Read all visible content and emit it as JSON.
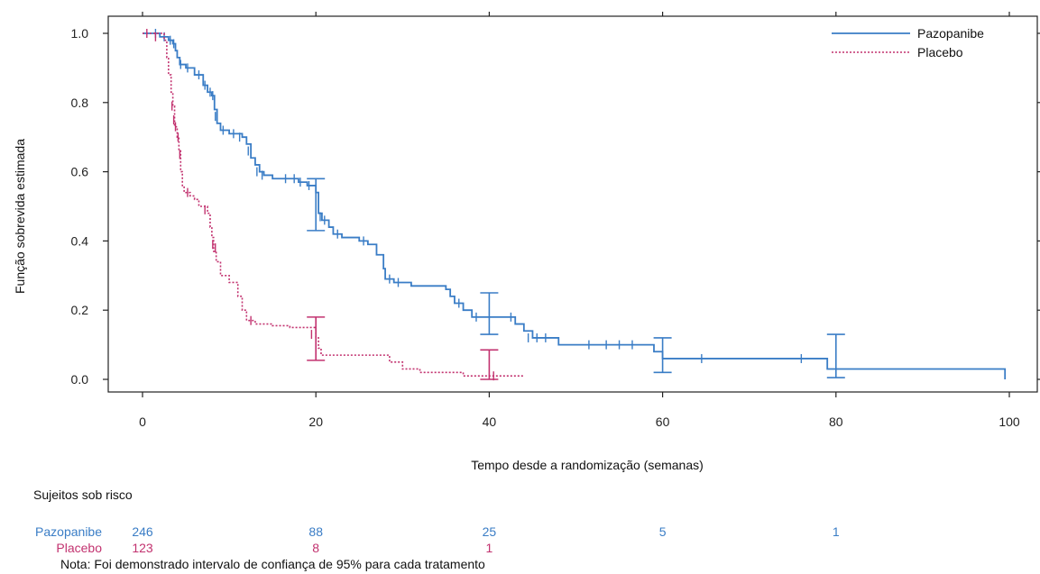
{
  "chart_data": {
    "type": "line",
    "title": "",
    "xlabel": "Tempo desde a randomização (semanas)",
    "ylabel": "Função sobrevida estimada",
    "xlim": [
      0,
      100
    ],
    "ylim": [
      0,
      1.0
    ],
    "x_ticks": [
      "0",
      "20",
      "40",
      "60",
      "80",
      "100"
    ],
    "y_ticks": [
      "0.0",
      "0.2",
      "0.4",
      "0.6",
      "0.8",
      "1.0"
    ],
    "legend": {
      "placement": "top-right",
      "entries": [
        "Pazopanibe",
        "Placebo"
      ]
    },
    "series": [
      {
        "name": "Pazopanibe",
        "color": "#3a7dc6",
        "line_style": "solid",
        "steps": [
          [
            0,
            1.0
          ],
          [
            2,
            0.99
          ],
          [
            3,
            0.98
          ],
          [
            3.5,
            0.97
          ],
          [
            3.8,
            0.95
          ],
          [
            4,
            0.93
          ],
          [
            4.3,
            0.91
          ],
          [
            5,
            0.9
          ],
          [
            6,
            0.88
          ],
          [
            7,
            0.85
          ],
          [
            7.5,
            0.83
          ],
          [
            8,
            0.82
          ],
          [
            8.3,
            0.78
          ],
          [
            8.6,
            0.74
          ],
          [
            9,
            0.72
          ],
          [
            10,
            0.71
          ],
          [
            11.5,
            0.7
          ],
          [
            12,
            0.68
          ],
          [
            12.5,
            0.64
          ],
          [
            13,
            0.62
          ],
          [
            13.5,
            0.6
          ],
          [
            14,
            0.59
          ],
          [
            15,
            0.58
          ],
          [
            17,
            0.58
          ],
          [
            18,
            0.57
          ],
          [
            19,
            0.56
          ],
          [
            20,
            0.54
          ],
          [
            20.3,
            0.48
          ],
          [
            20.7,
            0.46
          ],
          [
            21.5,
            0.44
          ],
          [
            22,
            0.42
          ],
          [
            23,
            0.41
          ],
          [
            25,
            0.4
          ],
          [
            26,
            0.39
          ],
          [
            27,
            0.36
          ],
          [
            27.8,
            0.32
          ],
          [
            28,
            0.29
          ],
          [
            29,
            0.28
          ],
          [
            31,
            0.27
          ],
          [
            35,
            0.26
          ],
          [
            35.5,
            0.24
          ],
          [
            36,
            0.22
          ],
          [
            37,
            0.2
          ],
          [
            38,
            0.18
          ],
          [
            40,
            0.18
          ],
          [
            43,
            0.16
          ],
          [
            44,
            0.14
          ],
          [
            45,
            0.12
          ],
          [
            48,
            0.1
          ],
          [
            59,
            0.08
          ],
          [
            60,
            0.06
          ],
          [
            79,
            0.03
          ],
          [
            99.5,
            0.0
          ]
        ],
        "censor_marks": [
          [
            1.5,
            1.0
          ],
          [
            2.5,
            0.99
          ],
          [
            3.2,
            0.98
          ],
          [
            3.6,
            0.97
          ],
          [
            4.4,
            0.91
          ],
          [
            5.2,
            0.9
          ],
          [
            6.5,
            0.88
          ],
          [
            7.2,
            0.85
          ],
          [
            7.8,
            0.83
          ],
          [
            8.1,
            0.82
          ],
          [
            8.4,
            0.76
          ],
          [
            9.3,
            0.72
          ],
          [
            10.5,
            0.71
          ],
          [
            11.2,
            0.7
          ],
          [
            12.2,
            0.66
          ],
          [
            13.2,
            0.6
          ],
          [
            13.8,
            0.59
          ],
          [
            16.5,
            0.58
          ],
          [
            17.5,
            0.58
          ],
          [
            18.2,
            0.57
          ],
          [
            19.2,
            0.56
          ],
          [
            20.5,
            0.47
          ],
          [
            21.0,
            0.46
          ],
          [
            22.5,
            0.42
          ],
          [
            25.5,
            0.4
          ],
          [
            28.5,
            0.29
          ],
          [
            29.5,
            0.28
          ],
          [
            36.5,
            0.22
          ],
          [
            38.5,
            0.18
          ],
          [
            42.5,
            0.18
          ],
          [
            44.5,
            0.12
          ],
          [
            45.5,
            0.12
          ],
          [
            46.5,
            0.12
          ],
          [
            51.5,
            0.1
          ],
          [
            53.5,
            0.1
          ],
          [
            55.0,
            0.1
          ],
          [
            56.5,
            0.1
          ],
          [
            64.5,
            0.06
          ],
          [
            76.0,
            0.06
          ]
        ],
        "ci": [
          {
            "x": 20,
            "upper": 0.58,
            "lower": 0.43
          },
          {
            "x": 40,
            "upper": 0.25,
            "lower": 0.13
          },
          {
            "x": 60,
            "upper": 0.12,
            "lower": 0.02
          },
          {
            "x": 80,
            "upper": 0.13,
            "lower": 0.005
          }
        ]
      },
      {
        "name": "Placebo",
        "color": "#c2326f",
        "line_style": "dotted",
        "steps": [
          [
            0,
            1.0
          ],
          [
            2.5,
            0.98
          ],
          [
            2.8,
            0.93
          ],
          [
            3.0,
            0.88
          ],
          [
            3.3,
            0.83
          ],
          [
            3.5,
            0.79
          ],
          [
            3.7,
            0.73
          ],
          [
            4.0,
            0.7
          ],
          [
            4.2,
            0.66
          ],
          [
            4.4,
            0.6
          ],
          [
            4.6,
            0.56
          ],
          [
            4.8,
            0.54
          ],
          [
            5.5,
            0.53
          ],
          [
            6.0,
            0.52
          ],
          [
            6.5,
            0.5
          ],
          [
            7.5,
            0.48
          ],
          [
            7.8,
            0.44
          ],
          [
            8.0,
            0.41
          ],
          [
            8.2,
            0.37
          ],
          [
            8.5,
            0.34
          ],
          [
            9.0,
            0.3
          ],
          [
            10.0,
            0.28
          ],
          [
            11.0,
            0.24
          ],
          [
            11.5,
            0.2
          ],
          [
            12.0,
            0.17
          ],
          [
            13.0,
            0.16
          ],
          [
            15.0,
            0.155
          ],
          [
            17.0,
            0.15
          ],
          [
            20.0,
            0.12
          ],
          [
            20.3,
            0.09
          ],
          [
            20.6,
            0.07
          ],
          [
            28.5,
            0.05
          ],
          [
            30,
            0.03
          ],
          [
            32,
            0.02
          ],
          [
            36,
            0.02
          ],
          [
            37,
            0.01
          ],
          [
            44,
            0.01
          ]
        ],
        "censor_marks": [
          [
            0.5,
            1.0
          ],
          [
            1.5,
            0.99
          ],
          [
            3.4,
            0.79
          ],
          [
            3.6,
            0.75
          ],
          [
            3.8,
            0.73
          ],
          [
            4.1,
            0.7
          ],
          [
            4.3,
            0.65
          ],
          [
            5.2,
            0.54
          ],
          [
            7.2,
            0.49
          ],
          [
            8.1,
            0.39
          ],
          [
            8.4,
            0.38
          ],
          [
            12.5,
            0.17
          ],
          [
            19.5,
            0.13
          ],
          [
            40.5,
            0.01
          ]
        ],
        "ci": [
          {
            "x": 20,
            "upper": 0.18,
            "lower": 0.055
          },
          {
            "x": 40,
            "upper": 0.085,
            "lower": 0.0
          }
        ]
      }
    ],
    "grid": false
  },
  "risk_table": {
    "title": "Sujeitos sob risco",
    "rows": [
      {
        "label": "Pazopanibe",
        "color": "#3a7dc6",
        "values": [
          "246",
          "88",
          "25",
          "5",
          "1"
        ],
        "x": [
          0,
          20,
          40,
          60,
          80
        ]
      },
      {
        "label": "Placebo",
        "color": "#c2326f",
        "values": [
          "123",
          "8",
          "1"
        ],
        "x": [
          0,
          20,
          40
        ]
      }
    ]
  },
  "note": "Nota: Foi demonstrado intervalo de confiança de 95% para cada tratamento"
}
